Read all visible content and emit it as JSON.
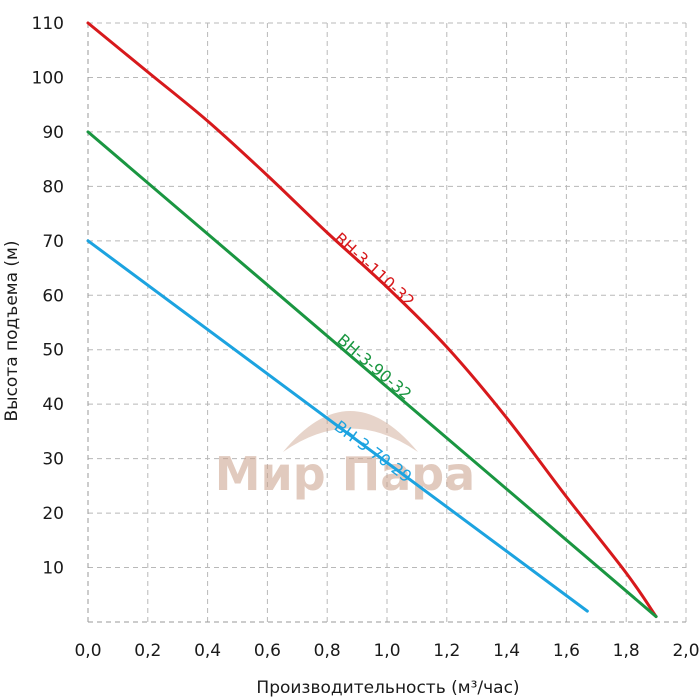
{
  "chart_data": {
    "type": "line",
    "xlabel": "Производительность (м³/час)",
    "ylabel": "Высота подъема (м)",
    "xlim": [
      0,
      2.0
    ],
    "ylim": [
      0,
      110
    ],
    "x_ticks": [
      "0,0",
      "0,2",
      "0,4",
      "0,6",
      "0,8",
      "1,0",
      "1,2",
      "1,4",
      "1,6",
      "1,8",
      "2,0"
    ],
    "y_ticks": [
      "10",
      "20",
      "30",
      "40",
      "50",
      "60",
      "70",
      "80",
      "90",
      "100",
      "110"
    ],
    "grid": true,
    "series": [
      {
        "name": "ВН-3-110-32",
        "color": "#d7191c",
        "points": [
          [
            0,
            110
          ],
          [
            0.2,
            101
          ],
          [
            0.4,
            92
          ],
          [
            0.6,
            82
          ],
          [
            0.8,
            71.5
          ],
          [
            1.0,
            61.5
          ],
          [
            1.2,
            50.5
          ],
          [
            1.4,
            37.5
          ],
          [
            1.6,
            23
          ],
          [
            1.8,
            9
          ],
          [
            1.9,
            1
          ]
        ]
      },
      {
        "name": "ВН-3-90-32",
        "color": "#1a9641",
        "points": [
          [
            0,
            90
          ],
          [
            1.9,
            1
          ]
        ]
      },
      {
        "name": "ВН-3-70-29",
        "color": "#1ca3e0",
        "points": [
          [
            0,
            70
          ],
          [
            1.67,
            2
          ]
        ]
      }
    ]
  },
  "watermark": {
    "text": "Мир Пара"
  }
}
